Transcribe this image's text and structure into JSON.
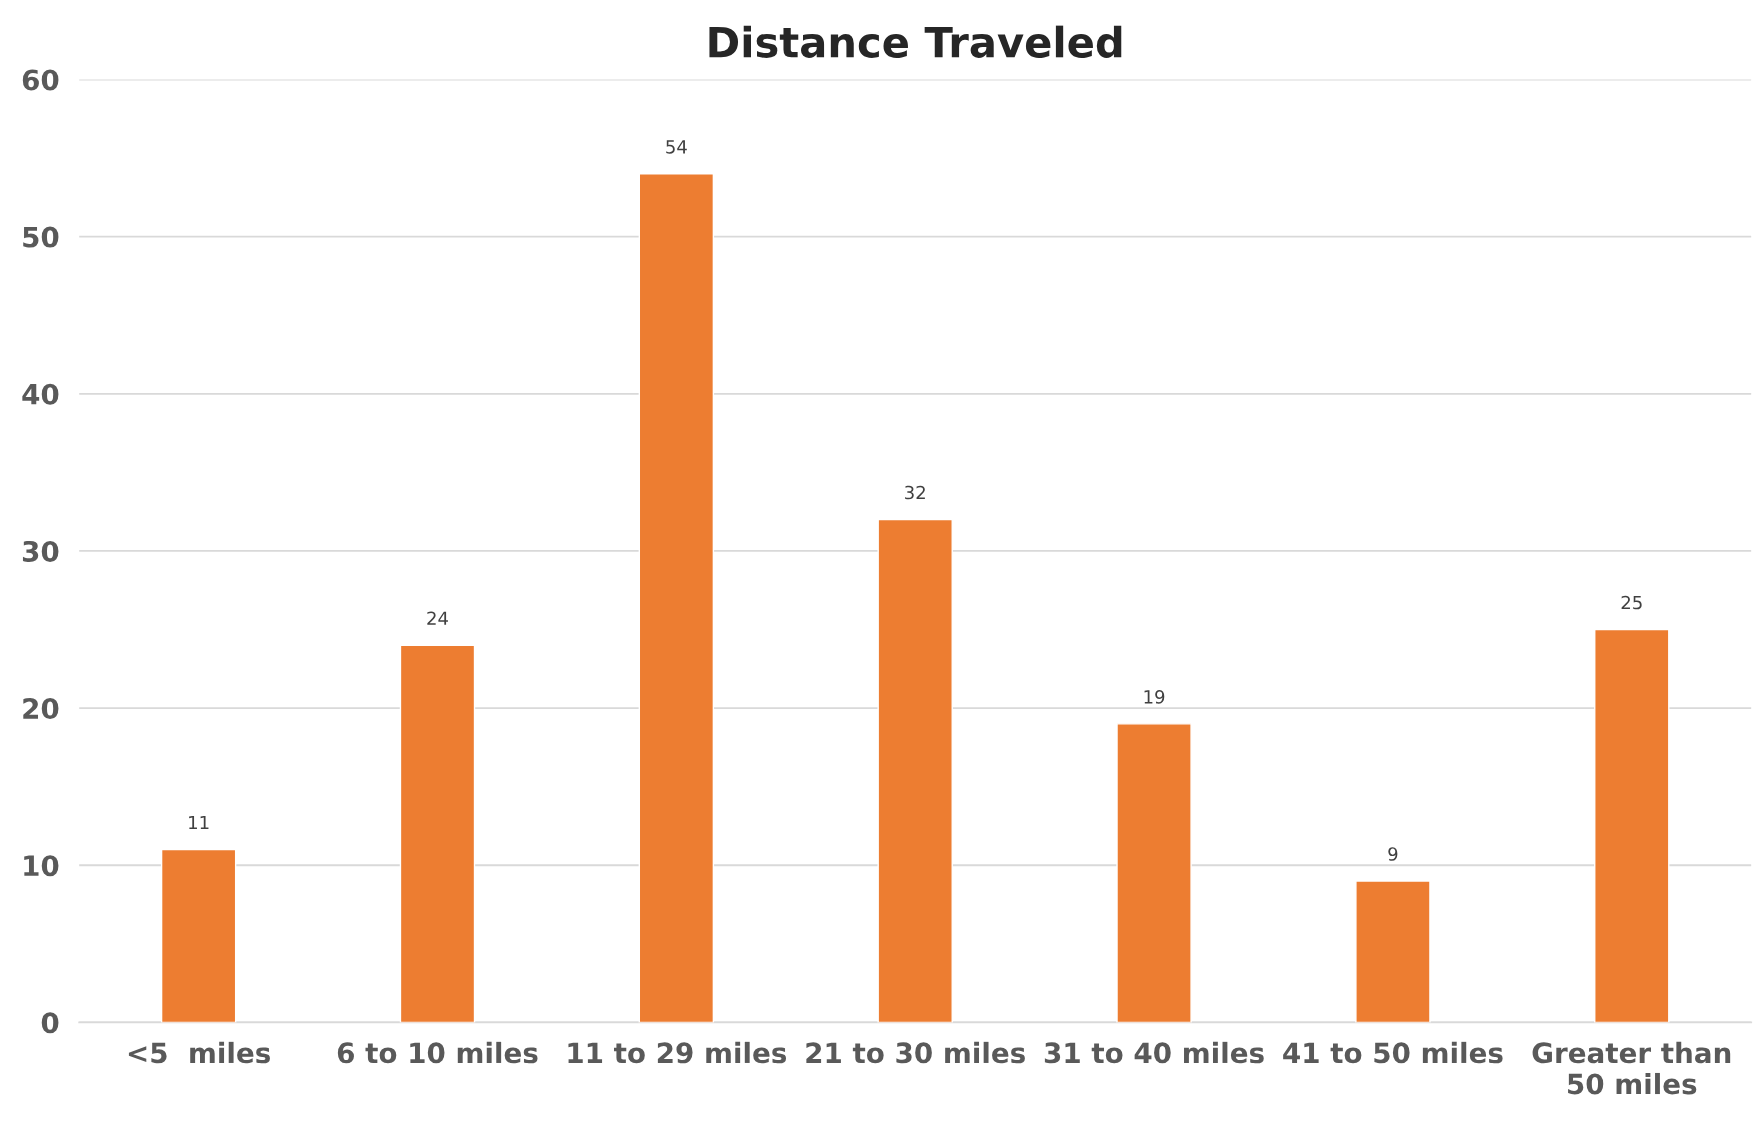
{
  "chart_data": {
    "type": "bar",
    "title": "Distance Traveled",
    "categories": [
      "<5  miles",
      "6 to 10 miles",
      "11 to 29 miles",
      "21 to 30 miles",
      "31 to 40 miles",
      "41 to 50 miles",
      "Greater than\n50 miles"
    ],
    "values": [
      11,
      24,
      54,
      32,
      19,
      9,
      25
    ],
    "color": "#ed7d31",
    "ylim": [
      0,
      60
    ],
    "yticks": [
      0,
      10,
      20,
      30,
      40,
      50,
      60
    ],
    "grid": "y",
    "data_labels": true
  }
}
